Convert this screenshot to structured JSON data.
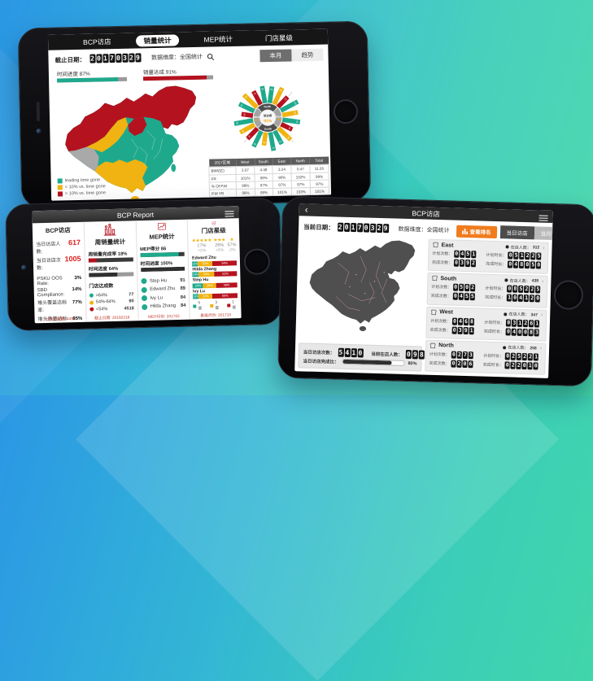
{
  "colors": {
    "green": "#1fa98c",
    "yellow": "#f0b312",
    "red": "#b5121f",
    "dark": "#2f2f2f",
    "orange": "#f07c1d"
  },
  "phone_sales": {
    "tabs": [
      {
        "label": "BCP访店",
        "active": false
      },
      {
        "label": "销量统计",
        "active": true
      },
      {
        "label": "MEP统计",
        "active": false
      },
      {
        "label": "门店星级",
        "active": false
      }
    ],
    "date_label": "截止日期：",
    "date": "20170329",
    "dimension_label": "数据维度：全国统计",
    "period_buttons": [
      {
        "label": "本月",
        "active": true
      },
      {
        "label": "趋势",
        "active": false
      }
    ],
    "progress": [
      {
        "label": "时间进度",
        "value": "87%",
        "pct": 87,
        "color": "green"
      },
      {
        "label": "销量达成",
        "value": "91%",
        "pct": 91,
        "color": "red"
      }
    ],
    "legend": [
      {
        "color": "green",
        "label": "leading time gone"
      },
      {
        "color": "yellow",
        "label": "< 10% vs. time gone"
      },
      {
        "color": "red",
        "label": "> 10% vs. time gone"
      }
    ],
    "radial": {
      "center_label": "总达成",
      "center_value": "91%",
      "quadrants": [
        {
          "name": "North",
          "value": ""
        },
        {
          "name": "East",
          "value": "92%"
        },
        {
          "name": "South",
          "value": ""
        },
        {
          "name": "West",
          "value": "90%"
        }
      ],
      "bars": [
        {
          "v": 86,
          "c": "green"
        },
        {
          "v": 95,
          "c": "yellow"
        },
        {
          "v": 72,
          "c": "red"
        },
        {
          "v": 100,
          "c": "green"
        },
        {
          "v": 82,
          "c": "yellow"
        },
        {
          "v": 92,
          "c": "green"
        },
        {
          "v": 64,
          "c": "red"
        },
        {
          "v": 88,
          "c": "yellow"
        },
        {
          "v": 78,
          "c": "green"
        },
        {
          "v": 97,
          "c": "green"
        },
        {
          "v": 68,
          "c": "yellow"
        },
        {
          "v": 90,
          "c": "green"
        },
        {
          "v": 74,
          "c": "red"
        },
        {
          "v": 85,
          "c": "yellow"
        },
        {
          "v": 99,
          "c": "green"
        },
        {
          "v": 60,
          "c": "red"
        },
        {
          "v": 87,
          "c": "green"
        },
        {
          "v": 94,
          "c": "yellow"
        },
        {
          "v": 79,
          "c": "red"
        },
        {
          "v": 89,
          "c": "green"
        }
      ]
    },
    "table": {
      "headers": [
        "2017区域",
        "West",
        "South",
        "East",
        "North",
        "Total"
      ],
      "rows": [
        [
          "BW/(亿)",
          "3.07",
          "4.48",
          "3.24",
          "0.47",
          "11.26"
        ],
        [
          "FR",
          "101%",
          "99%",
          "96%",
          "102%",
          "99%"
        ],
        [
          "% Of P.M",
          "98%",
          "97%",
          "97%",
          "97%",
          "97%"
        ],
        [
          "P.M YR",
          "98%",
          "99%",
          "101%",
          "103%",
          "101%"
        ]
      ]
    }
  },
  "phone_report": {
    "title": "BCP Report",
    "columns": [
      {
        "title": "BCP访店",
        "icon": "footprint-icon",
        "big_stats": [
          {
            "label": "当日访店人数:",
            "value": "617"
          },
          {
            "label": "当日访店次数:",
            "value": "1005"
          }
        ],
        "stats": [
          {
            "label": "PSKU OOS Rate:",
            "value": "3%"
          },
          {
            "label": "SBD Compliance:",
            "value": "14%"
          },
          {
            "label": "堆头覆盖达标率:",
            "value": "77%"
          },
          {
            "label": "堆头质量达标率:",
            "value": "85%"
          }
        ],
        "footer": "上周门店数: 4497"
      },
      {
        "title": "周销量统计",
        "icon": "bar-chart-icon",
        "bars": [
          {
            "label": "周销量完成率 18%",
            "pct": 18,
            "color": "red"
          },
          {
            "label": "时间进度 64%",
            "pct": 64,
            "color": "dark"
          }
        ],
        "list_title": "门店达成数",
        "bullets": [
          {
            "color": "green",
            "label": ">64%",
            "value": "77"
          },
          {
            "color": "yellow",
            "label": "54%-64%",
            "value": "90"
          },
          {
            "color": "red",
            "label": "<54%",
            "value": "4518"
          }
        ],
        "footer": "截止日期: 20160218"
      },
      {
        "title": "MEP统计",
        "icon": "line-chart-icon",
        "bars": [
          {
            "label": "MEP得分 86",
            "pct": 86,
            "color": "green"
          },
          {
            "label": "时间进度 100%",
            "pct": 100,
            "color": "dark"
          }
        ],
        "people": [
          {
            "name": "Step Hu",
            "score": "91"
          },
          {
            "name": "Edward Zhu",
            "score": "89"
          },
          {
            "name": "Ivy Lu",
            "score": "84"
          },
          {
            "name": "Hilda Zhang",
            "score": "84"
          }
        ],
        "footer": "MEP月份: 201702"
      },
      {
        "title": "门店星级",
        "icon": "store-icon",
        "star_groups": [
          {
            "stars": "★★★★★",
            "pct": "17%",
            "delta": "+2%"
          },
          {
            "stars": "★★★",
            "pct": "26%",
            "delta": "+0%"
          },
          {
            "stars": "★",
            "pct": "57%",
            "delta": "-2%"
          }
        ],
        "stacked": [
          {
            "name": "Edward Zhu",
            "segs": [
              13,
              33,
              54
            ]
          },
          {
            "name": "Hilda Zhang",
            "segs": [
              14,
              34,
              52
            ]
          },
          {
            "name": "Step Hu",
            "segs": [
              24,
              28,
              48
            ]
          },
          {
            "name": "Ivy Lu",
            "segs": [
              13,
              31,
              56
            ]
          }
        ],
        "legend": [
          {
            "color": "green",
            "label": "5星"
          },
          {
            "color": "yellow",
            "label": "3星"
          },
          {
            "color": "red",
            "label": "1星"
          }
        ],
        "footer": "星级月份: 201710"
      }
    ]
  },
  "phone_visit": {
    "back": "‹",
    "title": "BCP访店",
    "date_label": "当前日期：",
    "date": "20170329",
    "dimension_label": "数据维度：全国统计",
    "rank_button": "查看排名",
    "tabs": [
      {
        "label": "当日访店",
        "active": true
      },
      {
        "label": "当月访店",
        "active": false
      }
    ],
    "labels": {
      "plan_times": "计划次数：",
      "plan_hours": "计划时长：",
      "done_times": "完成次数：",
      "done_hours": "完成时长：",
      "people": "在店人数：",
      "chevron": "›"
    },
    "regions": [
      {
        "name": "East",
        "people": "312",
        "plan_times": "0451",
        "plan_hours": "051225",
        "done_times": "0392",
        "done_hours": "048050"
      },
      {
        "name": "South",
        "people": "438",
        "plan_times": "0502",
        "plan_hours": "085225",
        "done_times": "0455",
        "done_hours": "104120"
      },
      {
        "name": "West",
        "people": "347",
        "plan_times": "0468",
        "plan_hours": "031261",
        "done_times": "0391",
        "done_hours": "040083"
      },
      {
        "name": "North",
        "people": "258",
        "plan_times": "0273",
        "plan_hours": "025221",
        "done_times": "0206",
        "done_hours": "022010"
      }
    ],
    "bottom": {
      "visits_label": "当日访店次数：",
      "visits": "5410",
      "people_label": "当前在店人数：",
      "people": "0982",
      "rate_label": "当日访店完成比：",
      "rate_pct": 80,
      "rate_text": "80%"
    }
  }
}
